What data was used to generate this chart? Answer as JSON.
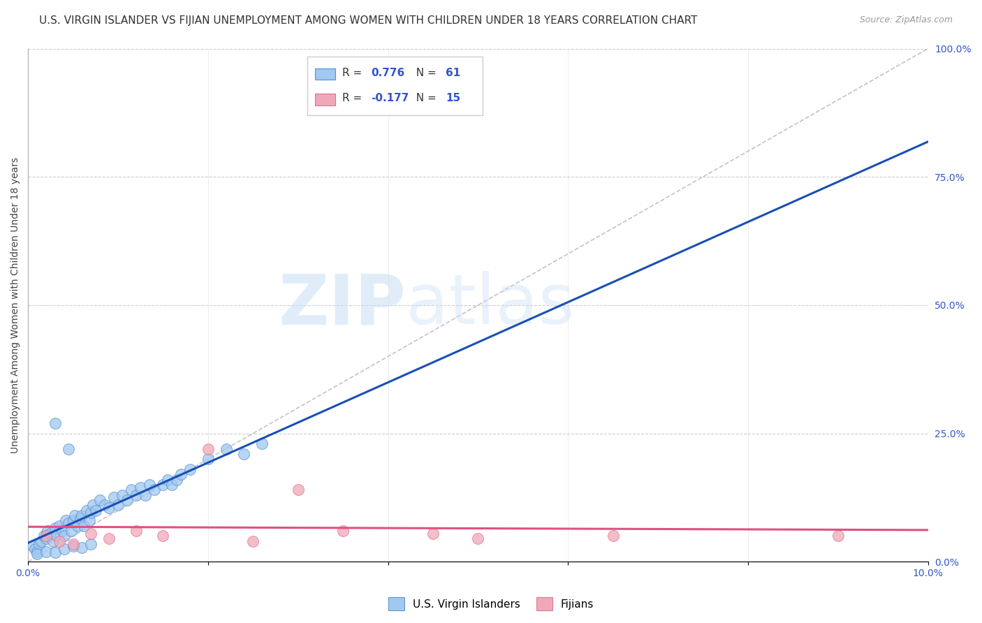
{
  "title": "U.S. VIRGIN ISLANDER VS FIJIAN UNEMPLOYMENT AMONG WOMEN WITH CHILDREN UNDER 18 YEARS CORRELATION CHART",
  "source": "Source: ZipAtlas.com",
  "ylabel": "Unemployment Among Women with Children Under 18 years",
  "xlim": [
    0.0,
    10.0
  ],
  "ylim": [
    0.0,
    100.0
  ],
  "yticks_right": [
    0.0,
    25.0,
    50.0,
    75.0,
    100.0
  ],
  "background_color": "#ffffff",
  "grid_color": "#cccccc",
  "watermark_zip": "ZIP",
  "watermark_atlas": "atlas",
  "blue_scatter_x": [
    0.05,
    0.08,
    0.1,
    0.12,
    0.15,
    0.18,
    0.2,
    0.22,
    0.25,
    0.28,
    0.3,
    0.32,
    0.35,
    0.38,
    0.4,
    0.42,
    0.45,
    0.48,
    0.5,
    0.52,
    0.55,
    0.58,
    0.6,
    0.62,
    0.65,
    0.68,
    0.7,
    0.72,
    0.75,
    0.8,
    0.85,
    0.9,
    0.95,
    1.0,
    1.05,
    1.1,
    1.15,
    1.2,
    1.25,
    1.3,
    1.35,
    1.4,
    1.5,
    1.55,
    1.6,
    1.65,
    1.7,
    1.8,
    2.0,
    2.2,
    2.4,
    2.6,
    0.1,
    0.2,
    0.3,
    0.4,
    0.5,
    0.6,
    0.7,
    0.3,
    0.45
  ],
  "blue_scatter_y": [
    3.0,
    2.5,
    2.0,
    3.5,
    4.0,
    5.0,
    4.5,
    6.0,
    5.5,
    4.0,
    6.5,
    5.0,
    7.0,
    6.0,
    5.0,
    8.0,
    7.5,
    6.0,
    8.0,
    9.0,
    7.0,
    8.5,
    9.0,
    7.0,
    10.0,
    8.0,
    9.5,
    11.0,
    10.0,
    12.0,
    11.0,
    10.5,
    12.5,
    11.0,
    13.0,
    12.0,
    14.0,
    13.0,
    14.5,
    13.0,
    15.0,
    14.0,
    15.0,
    16.0,
    15.0,
    16.0,
    17.0,
    18.0,
    20.0,
    22.0,
    21.0,
    23.0,
    1.5,
    2.0,
    1.8,
    2.5,
    3.0,
    2.8,
    3.5,
    27.0,
    22.0
  ],
  "pink_scatter_x": [
    0.2,
    0.35,
    0.5,
    0.7,
    0.9,
    1.2,
    1.5,
    2.0,
    2.5,
    3.0,
    3.5,
    4.5,
    5.0,
    6.5,
    9.0
  ],
  "pink_scatter_y": [
    5.0,
    4.0,
    3.5,
    5.5,
    4.5,
    6.0,
    5.0,
    22.0,
    4.0,
    14.0,
    6.0,
    5.5,
    4.5,
    5.0,
    5.0
  ],
  "blue_line_color": "#1a4fb5",
  "pink_line_color": "#e05080",
  "diag_line_color": "#aaaaaa",
  "scatter_blue_color": "#a0c8f0",
  "scatter_pink_color": "#f0a8b8",
  "scatter_blue_edge": "#5590d0",
  "scatter_pink_edge": "#e07090",
  "title_fontsize": 11,
  "axis_label_fontsize": 10,
  "tick_fontsize": 10,
  "legend_labels_bottom": [
    "U.S. Virgin Islanders",
    "Fijians"
  ],
  "R_blue": "0.776",
  "N_blue": "61",
  "R_pink": "-0.177",
  "N_pink": "15"
}
